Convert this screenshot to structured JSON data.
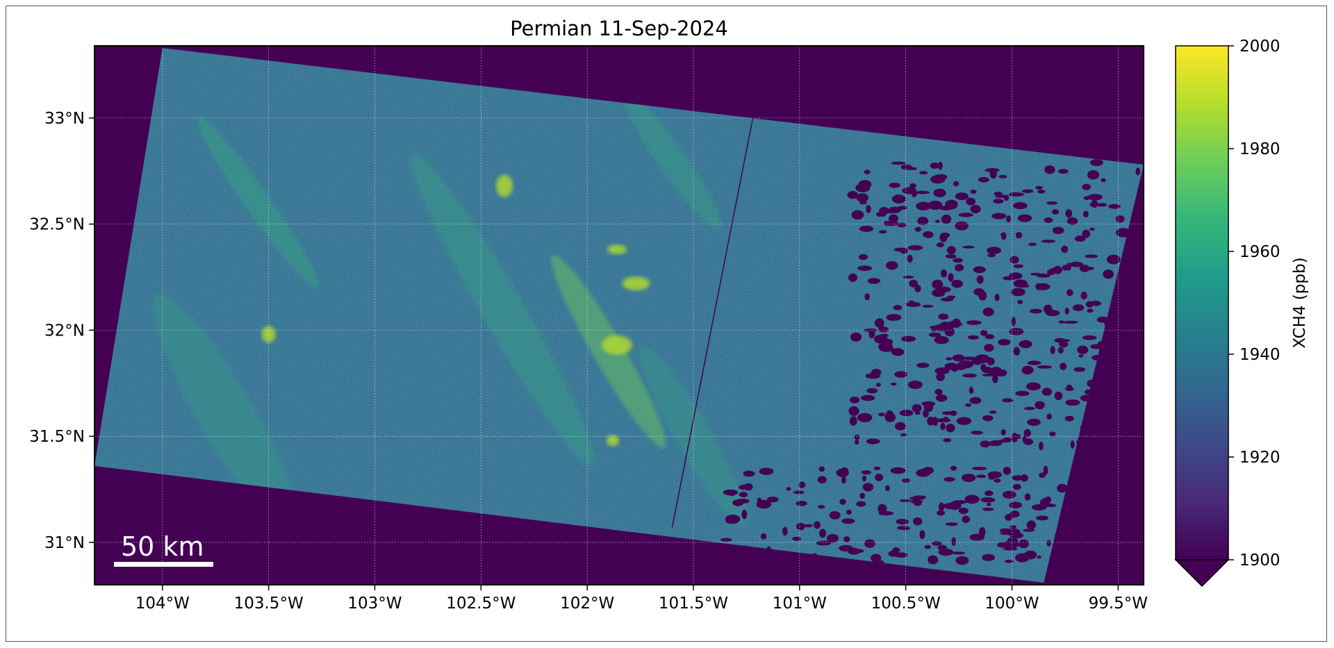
{
  "title": "Permian 11-Sep-2024",
  "map": {
    "type": "swath-map",
    "variable": "XCH4",
    "background_color": "#440154",
    "lon_ticks": [
      {
        "value": -104.0,
        "label": "104°W"
      },
      {
        "value": -103.5,
        "label": "103.5°W"
      },
      {
        "value": -103.0,
        "label": "103°W"
      },
      {
        "value": -102.5,
        "label": "102.5°W"
      },
      {
        "value": -102.0,
        "label": "102°W"
      },
      {
        "value": -101.5,
        "label": "101.5°W"
      },
      {
        "value": -101.0,
        "label": "101°W"
      },
      {
        "value": -100.5,
        "label": "100.5°W"
      },
      {
        "value": -100.0,
        "label": "100°W"
      },
      {
        "value": -99.5,
        "label": "99.5°W"
      }
    ],
    "lat_ticks": [
      {
        "value": 33.0,
        "label": "33°N"
      },
      {
        "value": 32.5,
        "label": "32.5°N"
      },
      {
        "value": 32.0,
        "label": "32°N"
      },
      {
        "value": 31.5,
        "label": "31.5°N"
      },
      {
        "value": 31.0,
        "label": "31°N"
      }
    ],
    "lon_range": [
      -104.32,
      -99.38
    ],
    "lat_range": [
      30.8,
      33.34
    ],
    "gridlines": true,
    "swath_corners": [
      {
        "lon": -104.0,
        "lat": 33.33
      },
      {
        "lon": -99.38,
        "lat": 32.78
      },
      {
        "lon": -99.85,
        "lat": 30.81
      },
      {
        "lon": -104.32,
        "lat": 31.36
      }
    ],
    "scalebar": {
      "label": "50 km",
      "position": "bottom-left"
    }
  },
  "colorbar": {
    "label": "XCH4 (ppb)",
    "colormap": "viridis",
    "min": 1900,
    "max": 2000,
    "extend": "min",
    "ticks": [
      "2000",
      "1980",
      "1960",
      "1940",
      "1920",
      "1900"
    ],
    "colors": [
      "#440154",
      "#482878",
      "#3e4989",
      "#31688e",
      "#26828e",
      "#1f9e89",
      "#35b779",
      "#6ece58",
      "#b5de2b",
      "#fde725"
    ]
  }
}
